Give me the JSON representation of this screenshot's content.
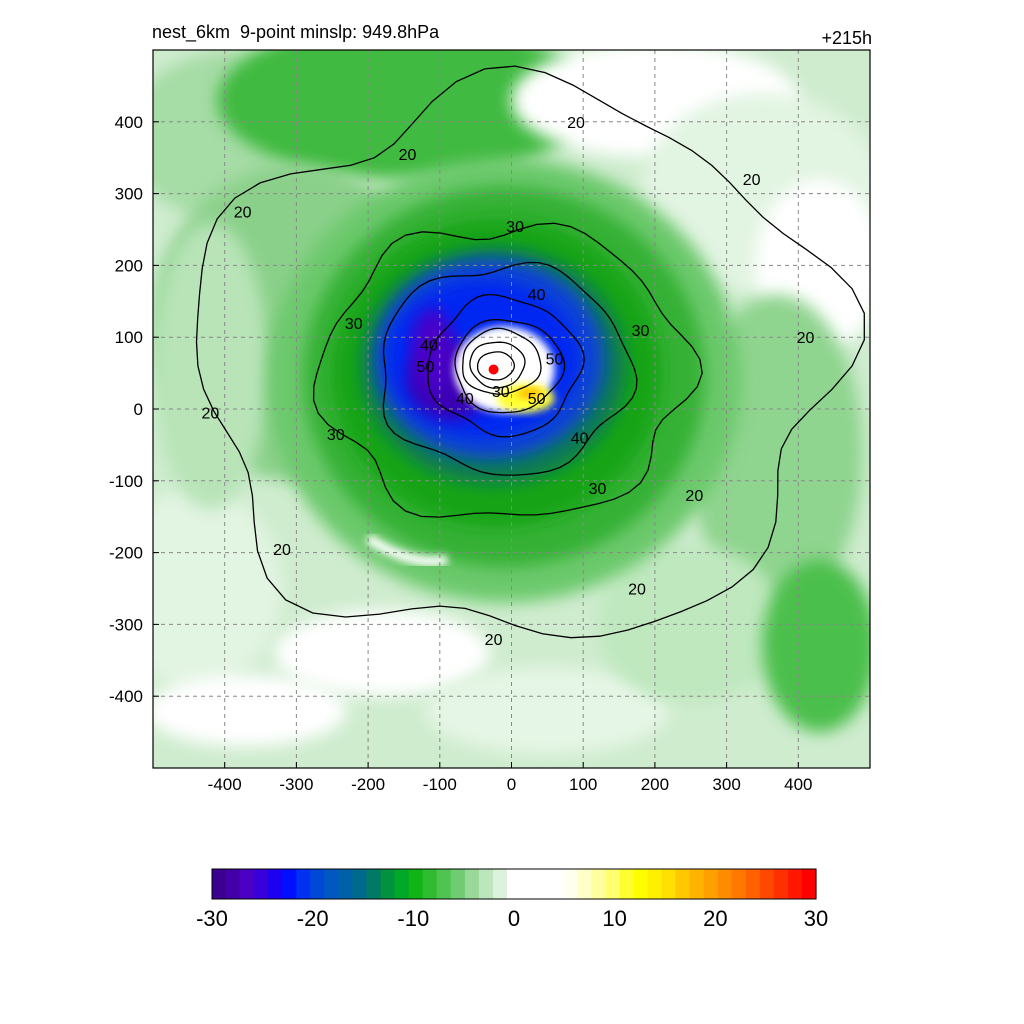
{
  "header": {
    "title": "nest_6km  9-point minslp: 949.8hPa",
    "forecast_hour": "+215h"
  },
  "chart_data": {
    "type": "heatmap",
    "title": "nest_6km  9-point minslp: 949.8hPa",
    "subtitle": "+215h",
    "xlabel": "",
    "ylabel": "",
    "xlim": [
      -500,
      500
    ],
    "ylim": [
      -500,
      500
    ],
    "x_ticks": [
      -400,
      -300,
      -200,
      -100,
      0,
      100,
      200,
      300,
      400
    ],
    "y_ticks": [
      -400,
      -300,
      -200,
      -100,
      0,
      100,
      200,
      300,
      400
    ],
    "grid": true,
    "grid_style": "dashed",
    "storm_center": {
      "x": -25,
      "y": 55,
      "color": "#ff0000"
    },
    "contour_levels": [
      20,
      30,
      40,
      50
    ],
    "contour_labels": [
      {
        "text": "20",
        "x": 90,
        "y": 400
      },
      {
        "text": "20",
        "x": -145,
        "y": 355
      },
      {
        "text": "20",
        "x": -375,
        "y": 275
      },
      {
        "text": "20",
        "x": 335,
        "y": 320
      },
      {
        "text": "20",
        "x": 410,
        "y": 100
      },
      {
        "text": "20",
        "x": -420,
        "y": -5
      },
      {
        "text": "20",
        "x": -320,
        "y": -195
      },
      {
        "text": "20",
        "x": 255,
        "y": -120
      },
      {
        "text": "20",
        "x": 175,
        "y": -250
      },
      {
        "text": "20",
        "x": -25,
        "y": -320
      },
      {
        "text": "30",
        "x": 5,
        "y": 255
      },
      {
        "text": "30",
        "x": -220,
        "y": 120
      },
      {
        "text": "30",
        "x": 180,
        "y": 110
      },
      {
        "text": "30",
        "x": -245,
        "y": -35
      },
      {
        "text": "30",
        "x": 120,
        "y": -110
      },
      {
        "text": "30",
        "x": -15,
        "y": 25
      },
      {
        "text": "40",
        "x": 35,
        "y": 160
      },
      {
        "text": "40",
        "x": -115,
        "y": 90
      },
      {
        "text": "40",
        "x": 95,
        "y": -40
      },
      {
        "text": "40",
        "x": -65,
        "y": 15
      },
      {
        "text": "50",
        "x": -120,
        "y": 60
      },
      {
        "text": "50",
        "x": 60,
        "y": 70
      },
      {
        "text": "50",
        "x": 35,
        "y": 15
      }
    ],
    "colorbar": {
      "min": -30,
      "max": 30,
      "tick_labels": [
        "-30",
        "-20",
        "-10",
        "0",
        "10",
        "20",
        "30"
      ],
      "tick_values": [
        -30,
        -20,
        -10,
        0,
        10,
        20,
        30
      ],
      "colors": [
        "#3a0090",
        "#4400a8",
        "#4c00c4",
        "#3a00dc",
        "#1e00f0",
        "#0010ff",
        "#0030f0",
        "#0048d8",
        "#0058c0",
        "#0060a8",
        "#006a8c",
        "#007a64",
        "#00923c",
        "#00a828",
        "#10b414",
        "#30bc30",
        "#50c450",
        "#70cc70",
        "#98d898",
        "#bce6bc",
        "#dcf2dc",
        "#ffffff",
        "#ffffff",
        "#ffffff",
        "#ffffff",
        "#fffff0",
        "#ffffc8",
        "#ffffa0",
        "#ffff70",
        "#ffff30",
        "#ffff00",
        "#fff000",
        "#ffe000",
        "#ffc800",
        "#ffb400",
        "#ffa000",
        "#ff8c00",
        "#ff7800",
        "#ff6000",
        "#ff4800",
        "#ff3000",
        "#ff1800",
        "#ff0000"
      ]
    }
  }
}
